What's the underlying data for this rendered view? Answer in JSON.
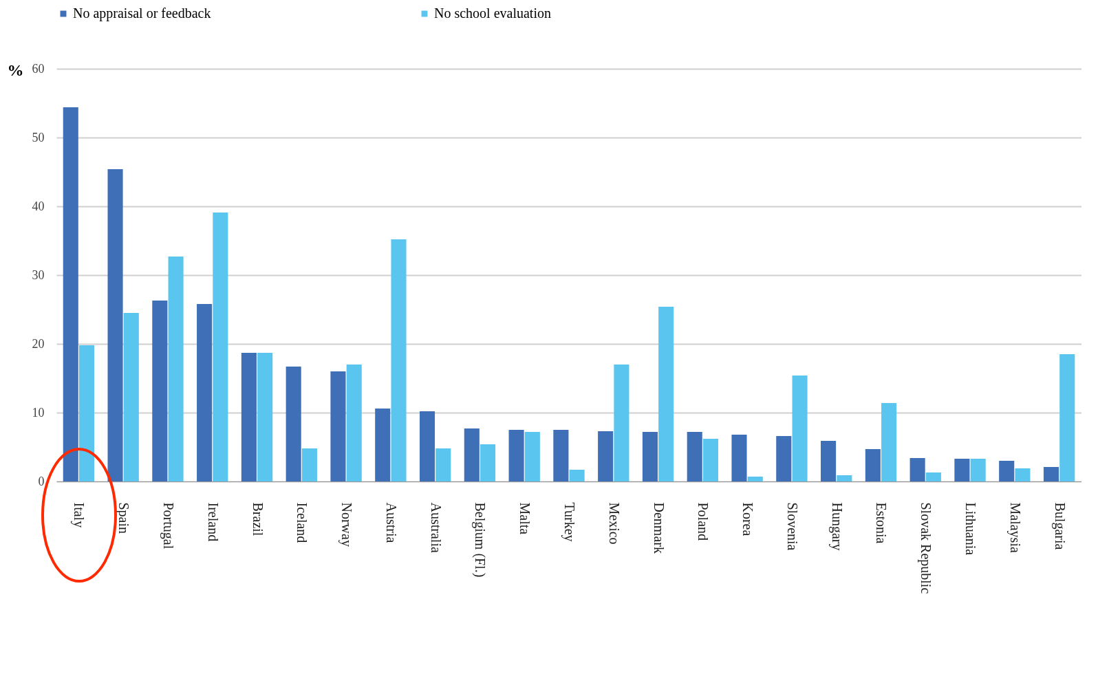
{
  "chart_data": {
    "type": "bar",
    "ylabel": "%",
    "categories": [
      "Italy",
      "Spain",
      "Portugal",
      "Ireland",
      "Brazil",
      "Iceland",
      "Norway",
      "Austria",
      "Australia",
      "Belgium (Fl.)",
      "Malta",
      "Turkey",
      "Mexico",
      "Denmark",
      "Poland",
      "Korea",
      "Slovenia",
      "Hungary",
      "Estonia",
      "Slovak Republic",
      "Lithuania",
      "Malaysia",
      "Bulgaria"
    ],
    "series": [
      {
        "name": "No appraisal or feedback",
        "color": "#3f6fb6",
        "values": [
          54.4,
          45.4,
          26.3,
          25.8,
          18.7,
          16.7,
          16.0,
          10.6,
          10.2,
          7.7,
          7.5,
          7.5,
          7.3,
          7.2,
          7.2,
          6.8,
          6.6,
          5.9,
          4.7,
          3.4,
          3.3,
          3.0,
          2.1
        ]
      },
      {
        "name": "No school evaluation",
        "color": "#5ac6f0",
        "values": [
          19.8,
          24.5,
          32.7,
          39.1,
          18.7,
          4.8,
          17.0,
          35.2,
          4.8,
          5.4,
          7.2,
          1.7,
          17.0,
          25.4,
          6.2,
          0.7,
          15.4,
          0.9,
          11.4,
          1.3,
          3.3,
          1.9,
          18.5
        ]
      }
    ],
    "ylim": [
      0,
      60
    ],
    "yticks": [
      0,
      10,
      20,
      30,
      40,
      50,
      60
    ],
    "grid": "y",
    "legend": "top"
  }
}
